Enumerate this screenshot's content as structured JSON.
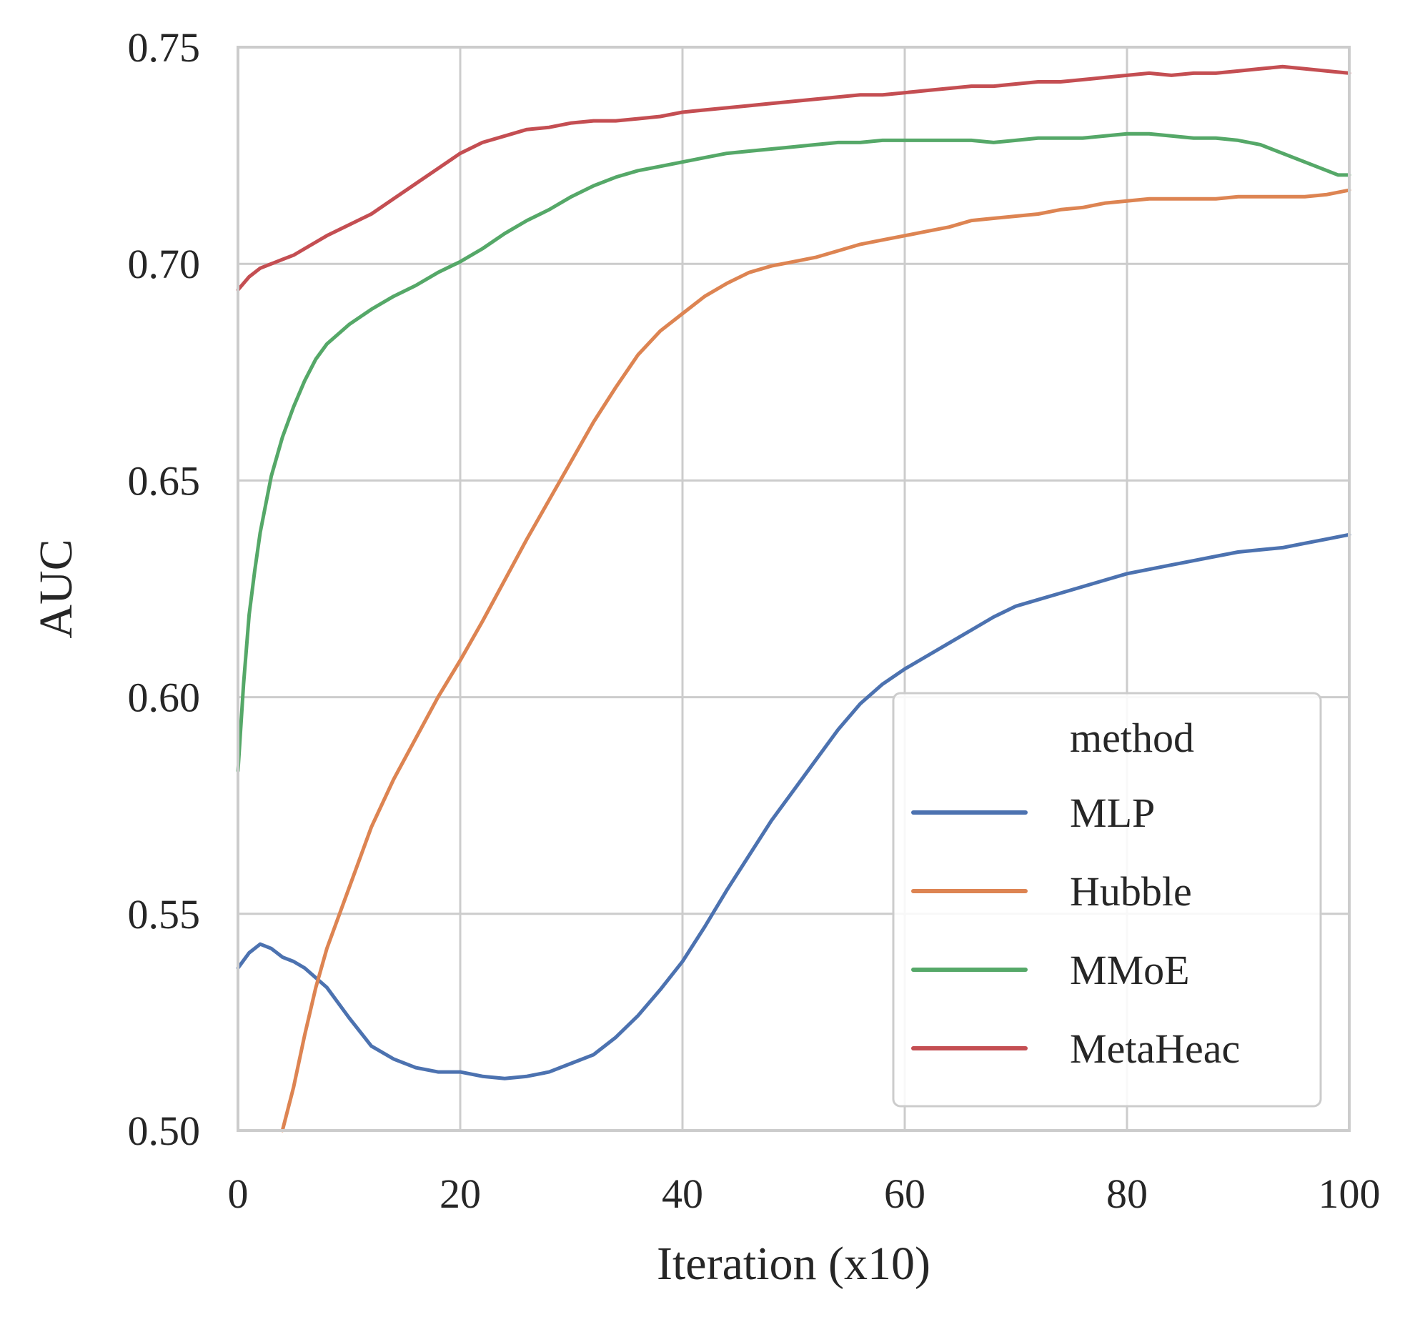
{
  "chart_data": {
    "type": "line",
    "title": "",
    "xlabel": "Iteration (x10)",
    "ylabel": "AUC",
    "xlim": [
      0,
      100
    ],
    "ylim": [
      0.5,
      0.75
    ],
    "grid": true,
    "xticks": [
      0,
      20,
      40,
      60,
      80,
      100
    ],
    "xtick_labels": [
      "0",
      "20",
      "40",
      "60",
      "80",
      "100"
    ],
    "yticks": [
      0.5,
      0.55,
      0.6,
      0.65,
      0.7,
      0.75
    ],
    "ytick_labels": [
      "0.50",
      "0.55",
      "0.60",
      "0.65",
      "0.70",
      "0.75"
    ],
    "legend": {
      "title": "method",
      "position": "lower-right"
    },
    "series": [
      {
        "name": "MLP",
        "color": "#4c72b0",
        "x": [
          0,
          1,
          2,
          3,
          4,
          5,
          6,
          8,
          10,
          12,
          14,
          16,
          18,
          20,
          22,
          24,
          26,
          28,
          30,
          32,
          34,
          36,
          38,
          40,
          42,
          44,
          46,
          48,
          50,
          52,
          54,
          56,
          58,
          60,
          62,
          64,
          66,
          68,
          70,
          72,
          74,
          76,
          78,
          80,
          82,
          84,
          86,
          88,
          90,
          92,
          94,
          96,
          98,
          100
        ],
        "y": [
          0.5375,
          0.541,
          0.543,
          0.542,
          0.54,
          0.539,
          0.5375,
          0.533,
          0.526,
          0.5195,
          0.5165,
          0.5145,
          0.5135,
          0.5135,
          0.5125,
          0.512,
          0.5125,
          0.5135,
          0.5155,
          0.5175,
          0.5215,
          0.5265,
          0.5325,
          0.539,
          0.547,
          0.5555,
          0.5635,
          0.5715,
          0.5785,
          0.5855,
          0.5925,
          0.5985,
          0.603,
          0.6065,
          0.6095,
          0.6125,
          0.6155,
          0.6185,
          0.621,
          0.6225,
          0.624,
          0.6255,
          0.627,
          0.6285,
          0.6295,
          0.6305,
          0.6315,
          0.6325,
          0.6335,
          0.634,
          0.6345,
          0.6355,
          0.6365,
          0.6375
        ]
      },
      {
        "name": "Hubble",
        "color": "#dd8452",
        "x": [
          4,
          5,
          6,
          7,
          8,
          10,
          12,
          14,
          16,
          18,
          20,
          22,
          24,
          26,
          28,
          30,
          32,
          34,
          36,
          38,
          40,
          42,
          44,
          46,
          48,
          50,
          52,
          54,
          56,
          58,
          60,
          62,
          64,
          66,
          68,
          70,
          72,
          74,
          76,
          78,
          80,
          82,
          84,
          86,
          88,
          90,
          92,
          94,
          96,
          98,
          100
        ],
        "y": [
          0.5,
          0.51,
          0.522,
          0.533,
          0.542,
          0.556,
          0.57,
          0.581,
          0.5905,
          0.6,
          0.6085,
          0.6175,
          0.627,
          0.6365,
          0.6455,
          0.6545,
          0.6635,
          0.6715,
          0.679,
          0.6845,
          0.6885,
          0.6925,
          0.6955,
          0.698,
          0.6995,
          0.7005,
          0.7015,
          0.703,
          0.7045,
          0.7055,
          0.7065,
          0.7075,
          0.7085,
          0.71,
          0.7105,
          0.711,
          0.7115,
          0.7125,
          0.713,
          0.714,
          0.7145,
          0.715,
          0.715,
          0.715,
          0.715,
          0.7155,
          0.7155,
          0.7155,
          0.7155,
          0.716,
          0.717
        ]
      },
      {
        "name": "MMoE",
        "color": "#55a868",
        "x": [
          0,
          0.5,
          1,
          1.5,
          2,
          3,
          4,
          5,
          6,
          7,
          8,
          10,
          12,
          14,
          16,
          18,
          20,
          22,
          24,
          26,
          28,
          30,
          32,
          34,
          36,
          38,
          40,
          42,
          44,
          46,
          48,
          50,
          52,
          54,
          56,
          58,
          60,
          62,
          64,
          66,
          68,
          70,
          72,
          74,
          76,
          78,
          80,
          82,
          84,
          86,
          88,
          90,
          92,
          94,
          96,
          98,
          99,
          100
        ],
        "y": [
          0.583,
          0.603,
          0.619,
          0.629,
          0.638,
          0.651,
          0.66,
          0.667,
          0.673,
          0.678,
          0.6815,
          0.686,
          0.6895,
          0.6925,
          0.695,
          0.698,
          0.7005,
          0.7035,
          0.707,
          0.71,
          0.7125,
          0.7155,
          0.718,
          0.72,
          0.7215,
          0.7225,
          0.7235,
          0.7245,
          0.7255,
          0.726,
          0.7265,
          0.727,
          0.7275,
          0.728,
          0.728,
          0.7285,
          0.7285,
          0.7285,
          0.7285,
          0.7285,
          0.728,
          0.7285,
          0.729,
          0.729,
          0.729,
          0.7295,
          0.73,
          0.73,
          0.7295,
          0.729,
          0.729,
          0.7285,
          0.7275,
          0.7255,
          0.7235,
          0.7215,
          0.7205,
          0.7205
        ]
      },
      {
        "name": "MetaHeac",
        "color": "#c44e52",
        "x": [
          0,
          1,
          2,
          3,
          4,
          5,
          6,
          7,
          8,
          10,
          12,
          14,
          16,
          18,
          20,
          22,
          24,
          26,
          28,
          30,
          32,
          34,
          36,
          38,
          40,
          42,
          44,
          46,
          48,
          50,
          52,
          54,
          56,
          58,
          60,
          62,
          64,
          66,
          68,
          70,
          72,
          74,
          76,
          78,
          80,
          82,
          84,
          86,
          88,
          90,
          92,
          94,
          96,
          98,
          100
        ],
        "y": [
          0.694,
          0.697,
          0.699,
          0.7,
          0.701,
          0.702,
          0.7035,
          0.705,
          0.7065,
          0.709,
          0.7115,
          0.715,
          0.7185,
          0.722,
          0.7255,
          0.728,
          0.7295,
          0.731,
          0.7315,
          0.7325,
          0.733,
          0.733,
          0.7335,
          0.734,
          0.735,
          0.7355,
          0.736,
          0.7365,
          0.737,
          0.7375,
          0.738,
          0.7385,
          0.739,
          0.739,
          0.7395,
          0.74,
          0.7405,
          0.741,
          0.741,
          0.7415,
          0.742,
          0.742,
          0.7425,
          0.743,
          0.7435,
          0.744,
          0.7435,
          0.744,
          0.744,
          0.7445,
          0.745,
          0.7455,
          0.745,
          0.7445,
          0.744
        ]
      }
    ]
  }
}
